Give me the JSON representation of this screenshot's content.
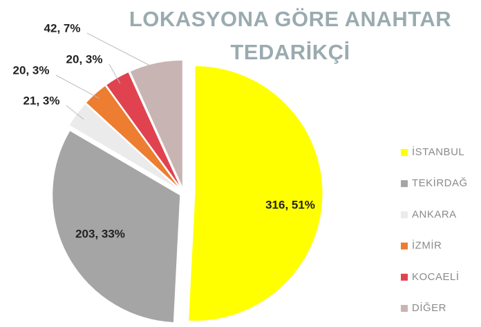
{
  "chart_data": {
    "type": "pie",
    "title": "LOKASYONA GÖRE ANAHTAR TEDARİKÇİ",
    "categories": [
      "İSTANBUL",
      "TEKİRDAĞ",
      "ANKARA",
      "İZMİR",
      "KOCAELİ",
      "DİĞER"
    ],
    "values": [
      316,
      203,
      21,
      20,
      20,
      42
    ],
    "value_labels": [
      "316, 51%",
      "203, 33%",
      "21, 3%",
      "20, 3%",
      "20, 3%",
      "42, 7%"
    ],
    "colors": [
      "#ffff00",
      "#a5a5a5",
      "#ebebeb",
      "#ed7d31",
      "#e0434f",
      "#c9b4b4"
    ],
    "legend": "right"
  }
}
